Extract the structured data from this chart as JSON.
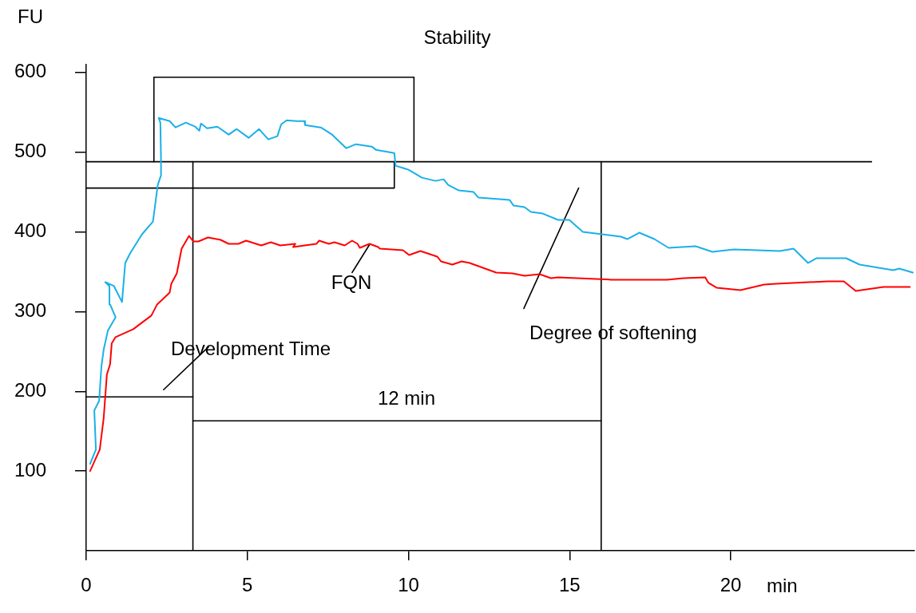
{
  "chart_data": {
    "type": "line",
    "title": "Stability",
    "xlabel": "min",
    "ylabel": "FU",
    "xlim": [
      0,
      25.7
    ],
    "ylim": [
      0,
      610
    ],
    "xticks": [
      0,
      5,
      10,
      15,
      20
    ],
    "yticks": [
      100,
      200,
      300,
      400,
      500,
      600
    ],
    "grid": false,
    "legend": false,
    "marker": "none",
    "annotations": [
      "FQN",
      "Development Time",
      "12 min",
      "Degree of softening"
    ],
    "series": [
      {
        "type": "line",
        "color": "#1ab0e8",
        "x": [
          0.12,
          0.3,
          0.25,
          0.4,
          0.47,
          0.54,
          0.67,
          0.91,
          0.74,
          0.72,
          0.59,
          0.86,
          1.11,
          1.21,
          1.36,
          1.73,
          2.07,
          2.22,
          2.32,
          2.32,
          2.3,
          2.25,
          2.59,
          2.77,
          3.09,
          3.38,
          3.51,
          3.56,
          3.75,
          4.07,
          4.42,
          4.67,
          5.04,
          5.36,
          5.65,
          5.93,
          6.05,
          6.22,
          6.54,
          6.77,
          6.79,
          7.28,
          7.63,
          8.07,
          8.37,
          8.86,
          8.99,
          9.56,
          9.6,
          10.0,
          10.42,
          10.84,
          11.09,
          11.23,
          11.56,
          12.02,
          12.17,
          13.14,
          13.26,
          13.6,
          13.8,
          14.17,
          14.64,
          14.99,
          15.41,
          16.59,
          16.79,
          17.16,
          17.63,
          18.07,
          18.91,
          19.43,
          20.1,
          21.53,
          21.95,
          22.4,
          22.67,
          23.58,
          24.0,
          25.04,
          25.23,
          25.65
        ],
        "values": [
          109,
          127,
          176,
          188,
          231,
          252,
          276,
          293,
          309,
          332,
          337,
          332,
          312,
          361,
          373,
          397,
          413,
          459,
          471,
          491,
          537,
          543,
          539,
          531,
          537,
          532,
          527,
          536,
          530,
          532,
          522,
          529,
          518,
          529,
          516,
          520,
          535,
          540,
          539,
          539,
          534,
          531,
          522,
          505,
          510,
          507,
          503,
          499,
          483,
          478,
          468,
          464,
          466,
          459,
          452,
          450,
          443,
          440,
          433,
          431,
          425,
          423,
          415,
          415,
          400,
          394,
          391,
          399,
          391,
          380,
          382,
          375,
          378,
          376,
          379,
          361,
          367,
          367,
          359,
          352,
          354,
          349
        ]
      },
      {
        "type": "line",
        "color": "#ff0000",
        "x": [
          0.12,
          0.42,
          0.54,
          0.64,
          0.74,
          0.79,
          0.91,
          1.46,
          2.02,
          2.2,
          2.59,
          2.64,
          2.81,
          2.96,
          3.19,
          3.33,
          3.48,
          3.78,
          4.17,
          4.42,
          4.72,
          4.96,
          5.43,
          5.73,
          6.02,
          6.49,
          6.42,
          7.14,
          7.23,
          7.53,
          7.7,
          8.02,
          8.25,
          8.42,
          8.49,
          8.79,
          9.06,
          9.11,
          9.83,
          10.02,
          10.37,
          10.89,
          11.01,
          11.36,
          11.65,
          11.9,
          12.72,
          13.23,
          13.6,
          14.07,
          14.42,
          14.64,
          16.3,
          18.02,
          18.54,
          19.21,
          19.31,
          19.56,
          20.3,
          21.04,
          21.41,
          23.01,
          23.51,
          23.88,
          24.74,
          25.56
        ],
        "values": [
          100,
          127,
          166,
          221,
          234,
          260,
          268,
          278,
          295,
          309,
          324,
          335,
          348,
          379,
          395,
          388,
          388,
          393,
          390,
          385,
          385,
          389,
          383,
          387,
          383,
          385,
          381,
          385,
          389,
          385,
          387,
          383,
          389,
          385,
          380,
          385,
          381,
          379,
          377,
          371,
          376,
          369,
          363,
          359,
          363,
          361,
          349,
          348,
          345,
          347,
          342,
          343,
          340,
          340,
          342,
          343,
          336,
          330,
          327,
          334,
          335,
          338,
          338,
          326,
          331,
          331
        ]
      },
      {
        "type": "line",
        "color": "#000000",
        "x": [
          0,
          24.37
        ],
        "values": [
          488,
          488
        ]
      },
      {
        "type": "line",
        "color": "#000000",
        "x": [
          3.31,
          3.31
        ],
        "values": [
          0,
          488
        ]
      },
      {
        "type": "line",
        "color": "#000000",
        "x": [
          15.98,
          15.98
        ],
        "values": [
          0,
          488
        ]
      },
      {
        "type": "line",
        "color": "#000000",
        "x": [
          2.1,
          2.1,
          10.17,
          10.17
        ],
        "values": [
          488,
          594,
          594,
          488
        ]
      },
      {
        "type": "line",
        "color": "#000000",
        "x": [
          0,
          9.56,
          9.56
        ],
        "values": [
          455,
          455,
          488
        ]
      },
      {
        "type": "line",
        "color": "#000000",
        "x": [
          0,
          3.31
        ],
        "values": [
          193,
          193
        ]
      },
      {
        "type": "line",
        "color": "#000000",
        "x": [
          3.31,
          15.98
        ],
        "values": [
          163,
          163
        ]
      },
      {
        "type": "line",
        "color": "#000000",
        "x": [
          2.4,
          3.8
        ],
        "values": [
          202,
          256
        ]
      },
      {
        "type": "line",
        "color": "#000000",
        "x": [
          8.25,
          8.79
        ],
        "values": [
          349,
          384
        ]
      },
      {
        "type": "line",
        "color": "#000000",
        "x": [
          13.58,
          15.28
        ],
        "values": [
          304,
          455
        ]
      }
    ]
  }
}
